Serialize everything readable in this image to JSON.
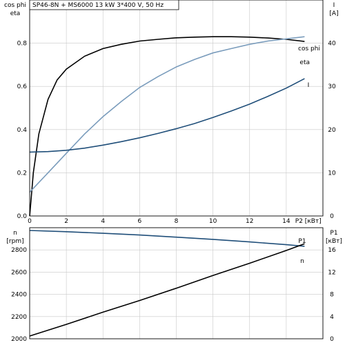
{
  "chart_data": [
    {
      "type": "line",
      "title": "SP46-8N + MS6000   13 kW   3*400 V, 50 Hz",
      "xlabel": "P2 [кВт]",
      "xlim": [
        0,
        16
      ],
      "x_ticks": [
        0,
        2,
        4,
        6,
        8,
        10,
        12,
        14
      ],
      "y_left": {
        "label_line1": "cos phi",
        "label_line2": "eta",
        "lim": [
          0,
          1.0
        ],
        "ticks": [
          "0.0",
          "0.2",
          "0.4",
          "0.6",
          "0.8"
        ],
        "tick_values": [
          0,
          0.2,
          0.4,
          0.6,
          0.8
        ]
      },
      "y_right": {
        "label_line1": "I",
        "label_line2": "[A]",
        "lim": [
          0,
          50
        ],
        "ticks": [
          "0",
          "10",
          "20",
          "30",
          "40"
        ],
        "tick_values": [
          0,
          10,
          20,
          30,
          40
        ]
      },
      "grid": true,
      "series": [
        {
          "name": "eta",
          "axis": "left",
          "color": "#000000",
          "x": [
            0,
            0.2,
            0.5,
            1,
            1.5,
            2,
            3,
            4,
            5,
            6,
            7,
            8,
            9,
            10,
            11,
            12,
            13,
            14,
            15
          ],
          "y": [
            0.0,
            0.2,
            0.38,
            0.54,
            0.63,
            0.68,
            0.74,
            0.775,
            0.795,
            0.81,
            0.818,
            0.825,
            0.828,
            0.83,
            0.83,
            0.828,
            0.824,
            0.818,
            0.808
          ]
        },
        {
          "name": "cos phi",
          "axis": "left",
          "color": "#7a9cbc",
          "x": [
            0,
            1,
            2,
            3,
            4,
            5,
            6,
            7,
            8,
            9,
            10,
            11,
            12,
            13,
            14,
            15
          ],
          "y": [
            0.11,
            0.2,
            0.29,
            0.38,
            0.46,
            0.53,
            0.595,
            0.645,
            0.69,
            0.725,
            0.755,
            0.775,
            0.795,
            0.81,
            0.82,
            0.83
          ]
        },
        {
          "name": "I",
          "axis": "right",
          "color": "#1f4e79",
          "x": [
            0,
            1,
            2,
            3,
            4,
            5,
            6,
            7,
            8,
            9,
            10,
            11,
            12,
            13,
            14,
            15
          ],
          "y": [
            14.8,
            14.9,
            15.2,
            15.7,
            16.4,
            17.2,
            18.1,
            19.1,
            20.2,
            21.4,
            22.8,
            24.3,
            25.9,
            27.7,
            29.6,
            31.8
          ]
        }
      ]
    },
    {
      "type": "line",
      "xlim": [
        0,
        16
      ],
      "x_ticks": [
        0,
        2,
        4,
        6,
        8,
        10,
        12,
        14
      ],
      "y_left": {
        "label_line1": "n",
        "label_line2": "[rpm]",
        "lim": [
          2000,
          3000
        ],
        "ticks": [
          "2000",
          "2200",
          "2400",
          "2600",
          "2800"
        ],
        "tick_values": [
          2000,
          2200,
          2400,
          2600,
          2800
        ]
      },
      "y_right": {
        "label_line1": "P1",
        "label_line2": "[кВт]",
        "lim": [
          0,
          20
        ],
        "ticks": [
          "0",
          "4",
          "8",
          "12",
          "16"
        ],
        "tick_values": [
          0,
          4,
          8,
          12,
          16
        ]
      },
      "grid": true,
      "series": [
        {
          "name": "n",
          "axis": "left",
          "color": "#1f4e79",
          "x": [
            0,
            2,
            4,
            6,
            8,
            10,
            12,
            14,
            15
          ],
          "y": [
            2975,
            2964,
            2950,
            2934,
            2915,
            2895,
            2872,
            2847,
            2833
          ]
        },
        {
          "name": "P1",
          "axis": "right",
          "color": "#000000",
          "x": [
            0,
            2,
            4,
            6,
            8,
            10,
            12,
            14,
            15
          ],
          "y": [
            0.5,
            2.6,
            4.8,
            6.9,
            9.1,
            11.4,
            13.6,
            15.9,
            17.1
          ]
        }
      ]
    }
  ]
}
